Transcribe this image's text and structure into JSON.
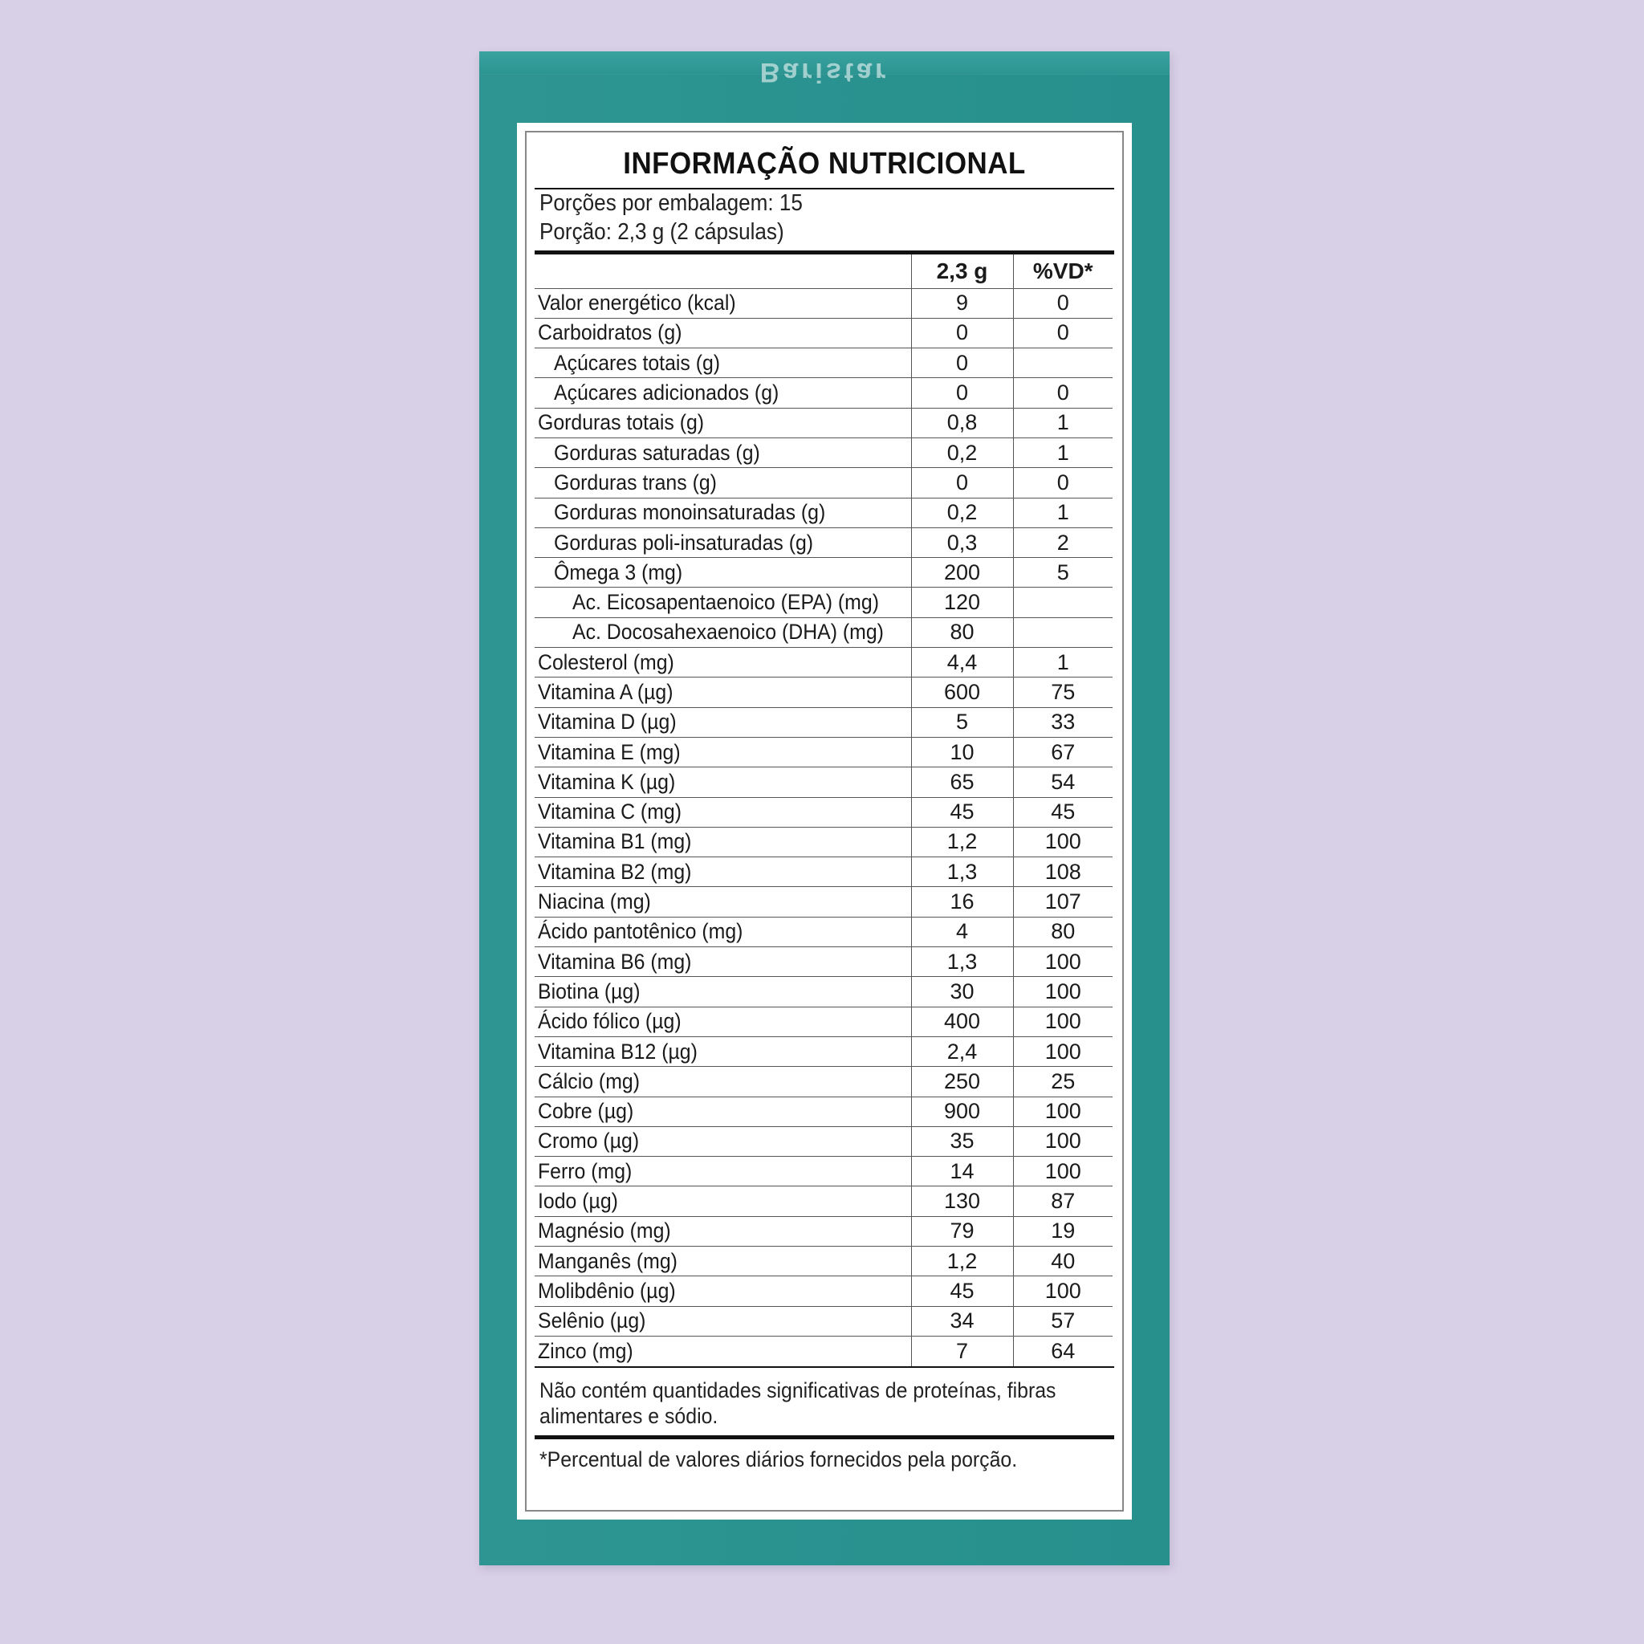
{
  "brand": "Baristar",
  "label": {
    "title": "INFORMAÇÃO NUTRICIONAL",
    "servings_per_package": "Porções por embalagem: 15",
    "serving_size": "Porção: 2,3 g (2 cápsulas)",
    "header": {
      "amount": "2,3 g",
      "dv": "%VD*"
    },
    "rows": [
      {
        "name": "Valor energético (kcal)",
        "value": "9",
        "dv": "0",
        "indent": 0
      },
      {
        "name": "Carboidratos (g)",
        "value": "0",
        "dv": "0",
        "indent": 0
      },
      {
        "name": "Açúcares totais (g)",
        "value": "0",
        "dv": "",
        "indent": 1
      },
      {
        "name": "Açúcares adicionados (g)",
        "value": "0",
        "dv": "0",
        "indent": 1
      },
      {
        "name": "Gorduras totais (g)",
        "value": "0,8",
        "dv": "1",
        "indent": 0
      },
      {
        "name": "Gorduras saturadas (g)",
        "value": "0,2",
        "dv": "1",
        "indent": 1
      },
      {
        "name": "Gorduras trans (g)",
        "value": "0",
        "dv": "0",
        "indent": 1
      },
      {
        "name": "Gorduras monoinsaturadas (g)",
        "value": "0,2",
        "dv": "1",
        "indent": 1
      },
      {
        "name": "Gorduras poli-insaturadas (g)",
        "value": "0,3",
        "dv": "2",
        "indent": 1
      },
      {
        "name": "Ômega 3 (mg)",
        "value": "200",
        "dv": "5",
        "indent": 1
      },
      {
        "name": "Ac. Eicosapentaenoico (EPA) (mg)",
        "value": "120",
        "dv": "",
        "indent": 2
      },
      {
        "name": "Ac. Docosahexaenoico (DHA) (mg)",
        "value": "80",
        "dv": "",
        "indent": 2
      },
      {
        "name": "Colesterol (mg)",
        "value": "4,4",
        "dv": "1",
        "indent": 0
      },
      {
        "name": "Vitamina A (µg)",
        "value": "600",
        "dv": "75",
        "indent": 0
      },
      {
        "name": "Vitamina D (µg)",
        "value": "5",
        "dv": "33",
        "indent": 0
      },
      {
        "name": "Vitamina E (mg)",
        "value": "10",
        "dv": "67",
        "indent": 0
      },
      {
        "name": "Vitamina K (µg)",
        "value": "65",
        "dv": "54",
        "indent": 0
      },
      {
        "name": "Vitamina C (mg)",
        "value": "45",
        "dv": "45",
        "indent": 0
      },
      {
        "name": "Vitamina B1 (mg)",
        "value": "1,2",
        "dv": "100",
        "indent": 0
      },
      {
        "name": "Vitamina B2 (mg)",
        "value": "1,3",
        "dv": "108",
        "indent": 0
      },
      {
        "name": "Niacina (mg)",
        "value": "16",
        "dv": "107",
        "indent": 0
      },
      {
        "name": "Ácido pantotênico (mg)",
        "value": "4",
        "dv": "80",
        "indent": 0
      },
      {
        "name": "Vitamina B6 (mg)",
        "value": "1,3",
        "dv": "100",
        "indent": 0
      },
      {
        "name": "Biotina (µg)",
        "value": "30",
        "dv": "100",
        "indent": 0
      },
      {
        "name": "Ácido fólico (µg)",
        "value": "400",
        "dv": "100",
        "indent": 0
      },
      {
        "name": "Vitamina B12 (µg)",
        "value": "2,4",
        "dv": "100",
        "indent": 0
      },
      {
        "name": "Cálcio (mg)",
        "value": "250",
        "dv": "25",
        "indent": 0
      },
      {
        "name": "Cobre (µg)",
        "value": "900",
        "dv": "100",
        "indent": 0
      },
      {
        "name": "Cromo (µg)",
        "value": "35",
        "dv": "100",
        "indent": 0
      },
      {
        "name": "Ferro (mg)",
        "value": "14",
        "dv": "100",
        "indent": 0
      },
      {
        "name": "Iodo (µg)",
        "value": "130",
        "dv": "87",
        "indent": 0
      },
      {
        "name": "Magnésio (mg)",
        "value": "79",
        "dv": "19",
        "indent": 0
      },
      {
        "name": "Manganês (mg)",
        "value": "1,2",
        "dv": "40",
        "indent": 0
      },
      {
        "name": "Molibdênio (µg)",
        "value": "45",
        "dv": "100",
        "indent": 0
      },
      {
        "name": "Selênio (µg)",
        "value": "34",
        "dv": "57",
        "indent": 0
      },
      {
        "name": "Zinco (mg)",
        "value": "7",
        "dv": "64",
        "indent": 0
      }
    ],
    "note_line1": "Não contém quantidades significativas de proteínas, fibras",
    "note_line2": "alimentares e sódio.",
    "footnote": "*Percentual de valores diários fornecidos pela porção."
  },
  "colors": {
    "background": "#d8d0e6",
    "box": "#2a9390",
    "label": "#ffffff"
  }
}
